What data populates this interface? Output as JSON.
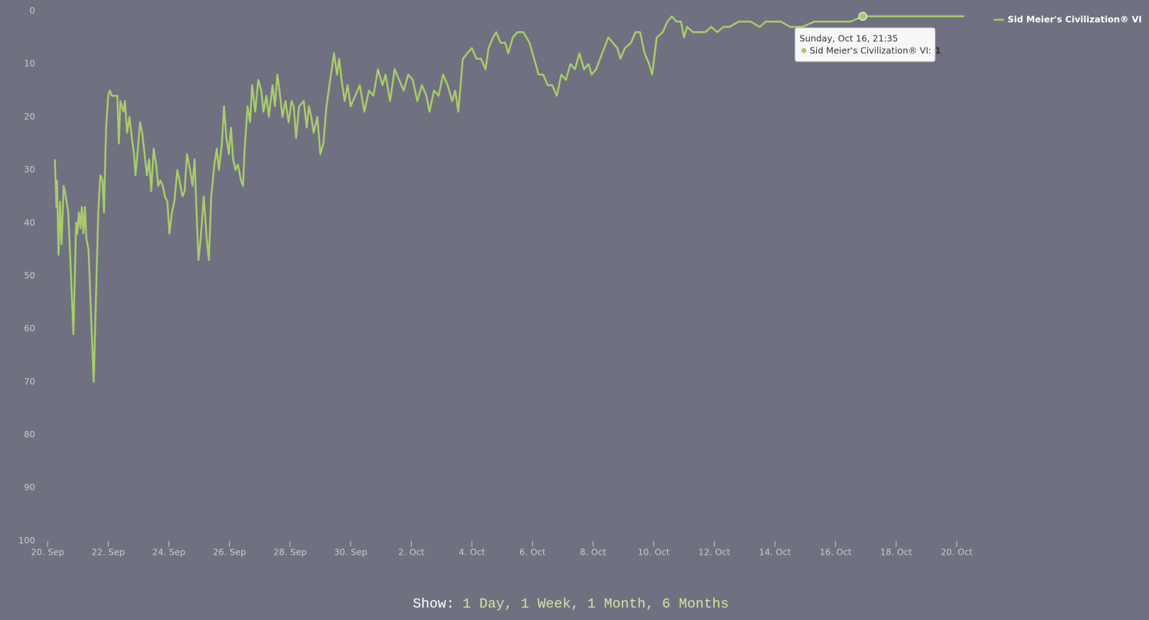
{
  "chart_data": {
    "type": "line",
    "reversed": true,
    "x": [
      0.24,
      0.29,
      0.31,
      0.36,
      0.41,
      0.46,
      0.53,
      0.6,
      0.68,
      0.75,
      0.85,
      0.94,
      0.98,
      1.03,
      1.08,
      1.13,
      1.18,
      1.23,
      1.28,
      1.35,
      1.45,
      1.52,
      1.59,
      1.67,
      1.74,
      1.81,
      1.86,
      1.93,
      2.0,
      2.05,
      2.12,
      2.3,
      2.35,
      2.4,
      2.5,
      2.55,
      2.62,
      2.7,
      2.78,
      2.85,
      2.9,
      2.98,
      3.05,
      3.12,
      3.2,
      3.28,
      3.35,
      3.42,
      3.5,
      3.58,
      3.65,
      3.72,
      3.8,
      3.87,
      3.95,
      4.02,
      4.1,
      4.18,
      4.28,
      4.35,
      4.45,
      4.52,
      4.6,
      4.7,
      4.78,
      4.85,
      4.92,
      4.98,
      5.05,
      5.15,
      5.25,
      5.32,
      5.4,
      5.5,
      5.58,
      5.65,
      5.75,
      5.82,
      5.9,
      5.98,
      6.05,
      6.12,
      6.2,
      6.28,
      6.38,
      6.45,
      6.5,
      6.6,
      6.68,
      6.75,
      6.85,
      6.95,
      7.05,
      7.12,
      7.22,
      7.3,
      7.42,
      7.5,
      7.58,
      7.65,
      7.75,
      7.85,
      7.95,
      8.05,
      8.12,
      8.2,
      8.3,
      8.45,
      8.55,
      8.62,
      8.7,
      8.78,
      8.9,
      9.0,
      9.1,
      9.2,
      9.3,
      9.45,
      9.55,
      9.62,
      9.7,
      9.8,
      9.9,
      10.0,
      10.15,
      10.3,
      10.45,
      10.6,
      10.75,
      10.9,
      11.05,
      11.15,
      11.3,
      11.45,
      11.6,
      11.75,
      11.9,
      12.05,
      12.2,
      12.35,
      12.5,
      12.6,
      12.75,
      12.9,
      13.05,
      13.2,
      13.35,
      13.45,
      13.55,
      13.7,
      13.85,
      14.0,
      14.15,
      14.3,
      14.45,
      14.55,
      14.7,
      14.8,
      14.95,
      15.1,
      15.2,
      15.35,
      15.5,
      15.7,
      15.9,
      16.05,
      16.2,
      16.35,
      16.5,
      16.65,
      16.8,
      16.95,
      17.1,
      17.25,
      17.4,
      17.55,
      17.7,
      17.85,
      17.95,
      18.1,
      18.3,
      18.5,
      18.65,
      18.8,
      18.9,
      19.05,
      19.25,
      19.4,
      19.55,
      19.7,
      19.85,
      19.95,
      20.1,
      20.3,
      20.45,
      20.6,
      20.75,
      20.9,
      21.0,
      21.1,
      21.3,
      21.5,
      21.7,
      21.9,
      22.1,
      22.3,
      22.5,
      22.8,
      23.2,
      23.5,
      23.7,
      24.2,
      24.5,
      24.9,
      25.3,
      26.0,
      26.5,
      26.9,
      30.25
    ],
    "series": [
      {
        "name": "Sid Meier's Civilization® VI",
        "color": "#a9cc6a",
        "values": [
          28,
          37,
          32,
          46,
          36,
          44,
          33,
          35,
          38,
          47,
          61,
          40,
          42,
          38,
          41,
          37,
          42,
          37,
          43,
          45,
          60,
          70,
          55,
          38,
          31,
          32,
          38,
          22,
          16,
          15,
          16,
          16,
          25,
          17,
          19,
          17,
          23,
          20,
          24,
          27,
          31,
          26,
          21,
          23,
          27,
          31,
          28,
          34,
          26,
          29,
          33,
          32,
          33,
          35,
          36,
          42,
          38,
          36,
          30,
          32,
          35,
          34,
          27,
          30,
          33,
          28,
          39,
          47,
          43,
          35,
          43,
          47,
          35,
          29,
          26,
          30,
          25,
          18,
          24,
          27,
          22,
          28,
          30,
          29,
          32,
          33,
          26,
          18,
          21,
          14,
          19,
          13,
          15,
          19,
          16,
          20,
          14,
          18,
          12,
          15,
          20,
          17,
          21,
          17,
          18,
          24,
          18,
          17,
          22,
          18,
          20,
          23,
          20,
          27,
          25,
          18,
          14,
          8,
          12,
          9,
          13,
          17,
          14,
          18,
          16,
          14,
          19,
          15,
          16,
          11,
          14,
          12,
          17,
          11,
          13,
          15,
          12,
          13,
          17,
          14,
          16,
          19,
          15,
          16,
          12,
          14,
          17,
          15,
          19,
          9,
          8,
          7,
          9,
          9,
          11,
          7,
          5,
          4,
          6,
          6,
          8,
          5,
          4,
          4,
          6,
          9,
          12,
          12,
          14,
          14,
          16,
          12,
          13,
          10,
          11,
          8,
          11,
          10,
          12,
          11,
          8,
          5,
          6,
          7,
          9,
          7,
          6,
          4,
          4,
          8,
          10,
          12,
          5,
          4,
          2,
          1,
          2,
          2,
          5,
          3,
          4,
          4,
          4,
          3,
          4,
          3,
          3,
          2,
          2,
          3,
          2,
          2,
          3,
          3,
          2,
          2,
          2,
          1,
          1
        ]
      }
    ],
    "xlim": [
      0,
      30.25
    ],
    "xticks": [
      {
        "value": 0,
        "label": "20. Sep"
      },
      {
        "value": 2,
        "label": "22. Sep"
      },
      {
        "value": 4,
        "label": "24. Sep"
      },
      {
        "value": 6,
        "label": "26. Sep"
      },
      {
        "value": 8,
        "label": "28. Sep"
      },
      {
        "value": 10,
        "label": "30. Sep"
      },
      {
        "value": 12,
        "label": "2. Oct"
      },
      {
        "value": 14,
        "label": "4. Oct"
      },
      {
        "value": 16,
        "label": "6. Oct"
      },
      {
        "value": 18,
        "label": "8. Oct"
      },
      {
        "value": 20,
        "label": "10. Oct"
      },
      {
        "value": 22,
        "label": "12. Oct"
      },
      {
        "value": 24,
        "label": "14. Oct"
      },
      {
        "value": 26,
        "label": "16. Oct"
      },
      {
        "value": 28,
        "label": "18. Oct"
      },
      {
        "value": 30,
        "label": "20. Oct"
      }
    ],
    "ylim": [
      0,
      100
    ],
    "yticks": [
      0,
      10,
      20,
      30,
      40,
      50,
      60,
      70,
      80,
      90,
      100
    ],
    "legend": "top-right",
    "tooltip": {
      "date": "Sunday, Oct 16, 21:35",
      "label": "Sid Meier's Civilization® VI:",
      "x": 26.9,
      "value": 1
    }
  },
  "footer": {
    "label": "Show:",
    "links": [
      "1 Day,",
      "1 Week,",
      "1 Month,",
      "6 Months"
    ]
  }
}
